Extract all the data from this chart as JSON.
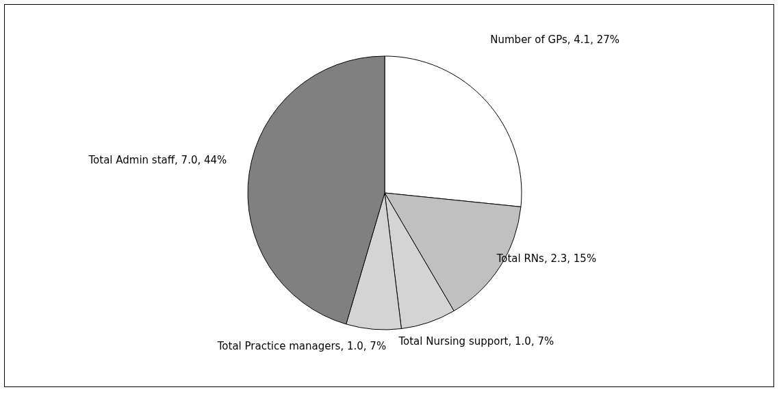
{
  "chart_data": {
    "type": "pie",
    "categories": [
      "Number of GPs",
      "Total RNs",
      "Total Nursing support",
      "Total Practice managers",
      "Total Admin staff"
    ],
    "values": [
      4.1,
      2.3,
      1.0,
      1.0,
      7.0
    ],
    "value_labels": [
      "4.1, 27%",
      "2.3, 15%",
      "1.0, 7%",
      "1.0, 7%",
      "7.0, 44%"
    ],
    "colors": [
      "#ffffff",
      "#c0c0c0",
      "#d4d4d4",
      "#d4d4d4",
      "#808080"
    ]
  }
}
